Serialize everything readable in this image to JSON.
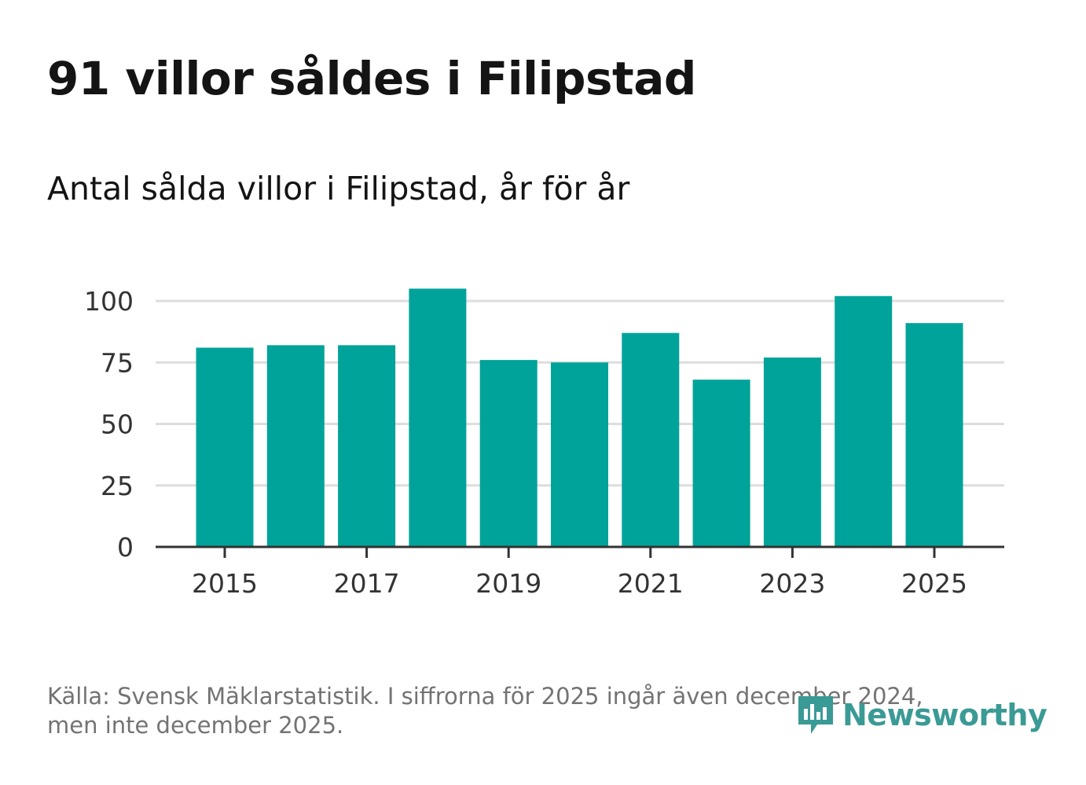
{
  "header": {
    "title": "91 villor såldes i Filipstad",
    "subtitle": "Antal sålda villor i Filipstad, år för år"
  },
  "footer": {
    "source_line1": "Källa: Svensk Mäklarstatistik. I siffrorna för 2025 ingår även december 2024,",
    "source_line2": "men inte december 2025.",
    "logo_text": "Newsworthy",
    "logo_icon": "newsworthy-bar-icon"
  },
  "colors": {
    "bar": "#00A39A",
    "grid": "#dddddd",
    "axis": "#333333",
    "logo": "#3a9a95"
  },
  "chart_data": {
    "type": "bar",
    "title": "91 villor såldes i Filipstad",
    "subtitle": "Antal sålda villor i Filipstad, år för år",
    "xlabel": "",
    "ylabel": "",
    "categories": [
      "2015",
      "2016",
      "2017",
      "2018",
      "2019",
      "2020",
      "2021",
      "2022",
      "2023",
      "2024",
      "2025"
    ],
    "values": [
      81,
      82,
      82,
      105,
      76,
      75,
      87,
      68,
      77,
      102,
      91
    ],
    "xticks": [
      "2015",
      "2017",
      "2019",
      "2021",
      "2023",
      "2025"
    ],
    "yticks": [
      0,
      25,
      50,
      75,
      100
    ],
    "ylim": [
      0,
      105
    ],
    "grid": true,
    "legend": "none"
  }
}
